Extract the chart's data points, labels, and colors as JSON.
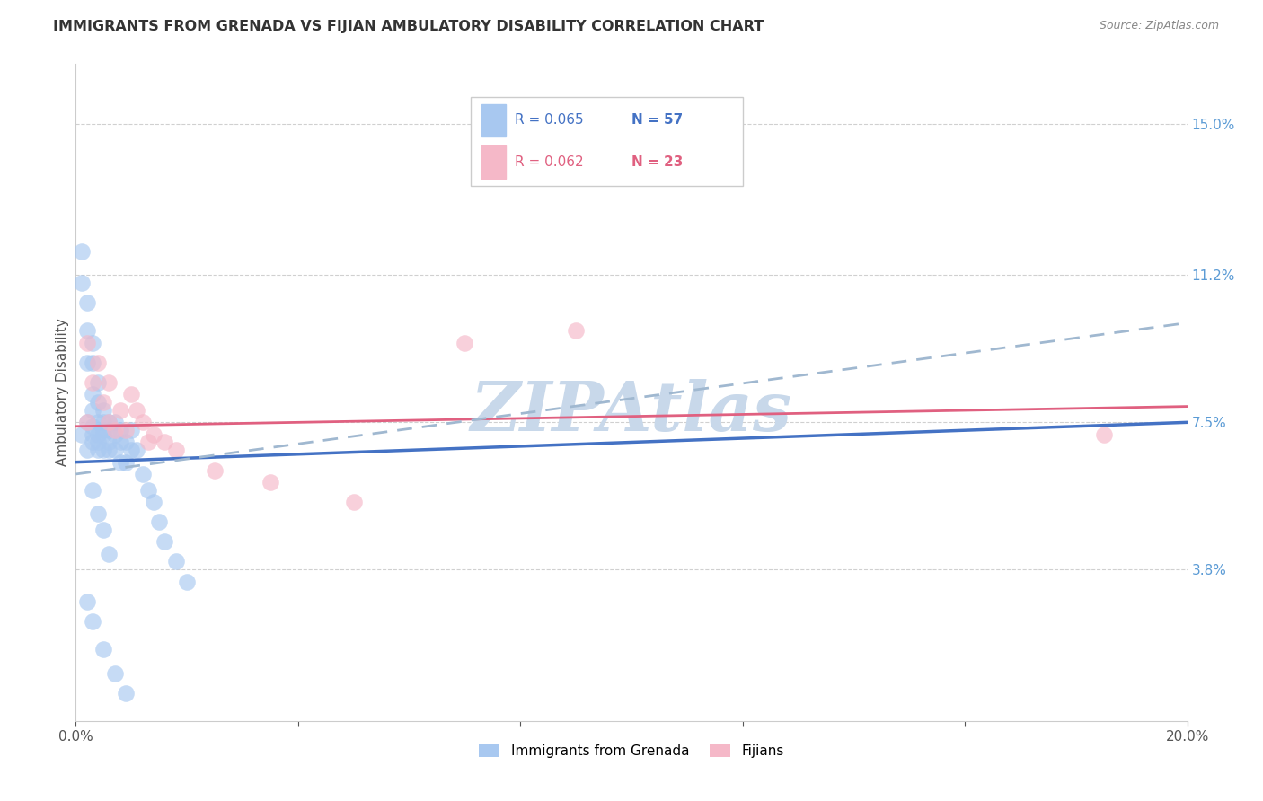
{
  "title": "IMMIGRANTS FROM GRENADA VS FIJIAN AMBULATORY DISABILITY CORRELATION CHART",
  "source": "Source: ZipAtlas.com",
  "ylabel": "Ambulatory Disability",
  "xlim": [
    0.0,
    0.2
  ],
  "ylim": [
    0.0,
    0.165
  ],
  "yticks_right": [
    0.038,
    0.075,
    0.112,
    0.15
  ],
  "ytick_labels_right": [
    "3.8%",
    "7.5%",
    "11.2%",
    "15.0%"
  ],
  "legend1_r": "R = 0.065",
  "legend1_n": "N = 57",
  "legend2_r": "R = 0.062",
  "legend2_n": "N = 23",
  "legend_label1": "Immigrants from Grenada",
  "legend_label2": "Fijians",
  "blue_color": "#a8c8f0",
  "pink_color": "#f5b8c8",
  "blue_line_color": "#4472c4",
  "pink_line_color": "#e06080",
  "dashed_line_color": "#a0b8d0",
  "watermark": "ZIPAtlas",
  "watermark_color": "#c8d8ea",
  "title_color": "#333333",
  "right_tick_color": "#5b9bd5",
  "blue_trend_x0": 0.0,
  "blue_trend_y0": 0.065,
  "blue_trend_x1": 0.2,
  "blue_trend_y1": 0.075,
  "pink_trend_x0": 0.0,
  "pink_trend_y0": 0.074,
  "pink_trend_x1": 0.2,
  "pink_trend_y1": 0.079,
  "dash_trend_x0": 0.0,
  "dash_trend_y0": 0.062,
  "dash_trend_x1": 0.2,
  "dash_trend_y1": 0.1,
  "grenada_x": [
    0.001,
    0.001,
    0.001,
    0.002,
    0.002,
    0.002,
    0.002,
    0.002,
    0.003,
    0.003,
    0.003,
    0.003,
    0.003,
    0.003,
    0.003,
    0.004,
    0.004,
    0.004,
    0.004,
    0.004,
    0.004,
    0.005,
    0.005,
    0.005,
    0.005,
    0.005,
    0.006,
    0.006,
    0.006,
    0.006,
    0.007,
    0.007,
    0.007,
    0.008,
    0.008,
    0.008,
    0.009,
    0.009,
    0.01,
    0.01,
    0.011,
    0.012,
    0.013,
    0.014,
    0.015,
    0.016,
    0.018,
    0.02,
    0.003,
    0.004,
    0.005,
    0.006,
    0.002,
    0.003,
    0.005,
    0.007,
    0.009
  ],
  "grenada_y": [
    0.118,
    0.11,
    0.072,
    0.105,
    0.098,
    0.09,
    0.075,
    0.068,
    0.095,
    0.09,
    0.082,
    0.078,
    0.074,
    0.072,
    0.07,
    0.085,
    0.08,
    0.075,
    0.072,
    0.07,
    0.068,
    0.078,
    0.075,
    0.073,
    0.072,
    0.068,
    0.075,
    0.073,
    0.07,
    0.068,
    0.075,
    0.072,
    0.068,
    0.073,
    0.07,
    0.065,
    0.07,
    0.065,
    0.073,
    0.068,
    0.068,
    0.062,
    0.058,
    0.055,
    0.05,
    0.045,
    0.04,
    0.035,
    0.058,
    0.052,
    0.048,
    0.042,
    0.03,
    0.025,
    0.018,
    0.012,
    0.007
  ],
  "fijian_x": [
    0.002,
    0.002,
    0.003,
    0.004,
    0.005,
    0.006,
    0.006,
    0.007,
    0.008,
    0.009,
    0.01,
    0.011,
    0.012,
    0.013,
    0.014,
    0.016,
    0.018,
    0.025,
    0.035,
    0.05,
    0.07,
    0.09,
    0.185
  ],
  "fijian_y": [
    0.095,
    0.075,
    0.085,
    0.09,
    0.08,
    0.075,
    0.085,
    0.073,
    0.078,
    0.073,
    0.082,
    0.078,
    0.075,
    0.07,
    0.072,
    0.07,
    0.068,
    0.063,
    0.06,
    0.055,
    0.095,
    0.098,
    0.072
  ]
}
